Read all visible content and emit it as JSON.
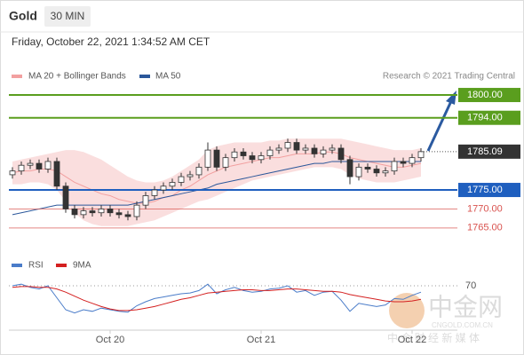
{
  "header": {
    "title": "Gold",
    "timeframe": "30 MIN",
    "timestamp": "Friday, October 22, 2021 1:34:52 AM CET",
    "source": "Research © 2021 Trading Central"
  },
  "watermark": {
    "brand": "中金网",
    "site": "CNGOLD.COM.CN",
    "tagline": "中 金 财 经 新 媒 体"
  },
  "chart_data": [
    {
      "type": "candlestick",
      "categories": [
        null,
        null,
        null,
        null,
        null,
        null,
        null,
        null,
        null,
        null,
        null,
        "Oct 20",
        null,
        null,
        null,
        null,
        null,
        null,
        null,
        null,
        null,
        null,
        null,
        null,
        null,
        null,
        null,
        null,
        "Oct 21",
        null,
        null,
        null,
        null,
        null,
        null,
        null,
        null,
        null,
        null,
        null,
        null,
        null,
        null,
        null,
        null,
        "Oct 22",
        null
      ],
      "open": [
        1779.0,
        1780.0,
        1781.5,
        1782.0,
        1780.5,
        1782.5,
        1776.0,
        1770.0,
        1768.5,
        1769.5,
        1769.0,
        1770.0,
        1769.0,
        1768.5,
        1768.0,
        1771.0,
        1773.5,
        1775.0,
        1776.0,
        1777.0,
        1778.5,
        1779.0,
        1781.0,
        1785.5,
        1781.0,
        1783.5,
        1785.0,
        1784.0,
        1783.0,
        1784.0,
        1785.5,
        1786.0,
        1787.5,
        1785.5,
        1786.0,
        1784.5,
        1785.5,
        1786.0,
        1783.0,
        1778.5,
        1781.0,
        1780.5,
        1779.5,
        1780.0,
        1782.5,
        1782.0,
        1783.5
      ],
      "high": [
        1781,
        1782.5,
        1783,
        1783,
        1783.5,
        1783.5,
        1777,
        1771,
        1770.5,
        1770.5,
        1771,
        1771,
        1770,
        1769.5,
        1772,
        1774.5,
        1776,
        1777,
        1778,
        1779.5,
        1780,
        1782,
        1787.5,
        1786.5,
        1784.5,
        1786,
        1786,
        1785,
        1785,
        1786.5,
        1787,
        1788.5,
        1788.5,
        1787,
        1787,
        1786.5,
        1787,
        1787,
        1784,
        1782,
        1782,
        1781.5,
        1781,
        1783.5,
        1783.5,
        1784.5,
        1786
      ],
      "low": [
        1778,
        1779,
        1780.5,
        1779.5,
        1779.5,
        1775,
        1769,
        1767.5,
        1767.5,
        1768,
        1768,
        1768,
        1767.5,
        1767,
        1767,
        1770,
        1772.5,
        1774,
        1775,
        1776,
        1777.5,
        1778,
        1780,
        1780,
        1780,
        1782.5,
        1783,
        1782,
        1782,
        1783,
        1784.5,
        1785,
        1784.5,
        1784.5,
        1783.5,
        1783.5,
        1784.5,
        1782,
        1776.5,
        1777.5,
        1779.5,
        1778.5,
        1778.5,
        1779,
        1781,
        1781,
        1782.5
      ],
      "close": [
        1780.0,
        1781.5,
        1782.0,
        1780.5,
        1782.5,
        1776.0,
        1770.0,
        1768.5,
        1769.5,
        1769.0,
        1770.0,
        1769.0,
        1768.5,
        1768.0,
        1771.0,
        1773.5,
        1775.0,
        1776.0,
        1777.0,
        1778.5,
        1779.0,
        1781.0,
        1785.5,
        1781.0,
        1783.5,
        1785.0,
        1784.0,
        1783.0,
        1784.0,
        1785.5,
        1786.0,
        1787.5,
        1785.5,
        1786.0,
        1784.5,
        1785.5,
        1786.0,
        1783.0,
        1778.5,
        1781.0,
        1780.5,
        1779.5,
        1780.0,
        1782.5,
        1782.0,
        1783.5,
        1785.09
      ],
      "candle_colors": {
        "up": "#ffffff",
        "down": "#333333"
      },
      "bands": {
        "name": "MA 20 + Bollinger Bands",
        "color": "#f2a0a0",
        "upper": [
          1782.5,
          1783,
          1783.5,
          1784,
          1784.5,
          1785,
          1785.5,
          1785.5,
          1785,
          1784,
          1783,
          1781.5,
          1780,
          1778.5,
          1777.5,
          1777,
          1777,
          1777.5,
          1778.5,
          1780,
          1781.5,
          1783,
          1785.5,
          1786.5,
          1787,
          1787.5,
          1787.5,
          1787.5,
          1787.5,
          1788,
          1788,
          1788.5,
          1788.5,
          1788.5,
          1788.5,
          1788.5,
          1788.5,
          1788.5,
          1788,
          1787.5,
          1787,
          1786.5,
          1786,
          1785.5,
          1785.5,
          1785.5,
          1786
        ],
        "middle": [
          1779.5,
          1780,
          1780,
          1780.5,
          1780.5,
          1780,
          1778.5,
          1777,
          1776,
          1775,
          1774,
          1773.5,
          1772.5,
          1772,
          1771.5,
          1771.5,
          1772,
          1773,
          1773.5,
          1775,
          1776,
          1777.5,
          1779,
          1780,
          1781,
          1781.5,
          1782,
          1782.5,
          1783,
          1783.5,
          1783.5,
          1784,
          1784.5,
          1784.5,
          1784.5,
          1785,
          1785,
          1784.5,
          1783.5,
          1783,
          1782.5,
          1782,
          1781.5,
          1781,
          1781,
          1781.5,
          1782
        ],
        "lower": [
          1776.5,
          1776.5,
          1777,
          1777,
          1776.5,
          1775,
          1772,
          1769,
          1767,
          1766,
          1765.5,
          1765.5,
          1765.5,
          1765.5,
          1766,
          1766.5,
          1767,
          1768,
          1769,
          1770,
          1771,
          1772,
          1772.5,
          1773.5,
          1774.5,
          1775.5,
          1776.5,
          1777.5,
          1778,
          1778.5,
          1779,
          1779.5,
          1780,
          1780.5,
          1781,
          1781,
          1781,
          1780.5,
          1779,
          1778,
          1777.5,
          1777,
          1777,
          1777,
          1777.5,
          1778,
          1778.5
        ]
      },
      "series": [
        {
          "name": "MA 50",
          "color": "#2b579a",
          "values": [
            1768.5,
            1769,
            1769.5,
            1770,
            1770.5,
            1771,
            1771,
            1771,
            1771,
            1771,
            1771,
            1771,
            1771,
            1771,
            1771.5,
            1772,
            1772.5,
            1773,
            1773.5,
            1774,
            1774.5,
            1775,
            1775.5,
            1776.5,
            1777,
            1777.5,
            1778,
            1778.5,
            1779,
            1779.5,
            1780,
            1780.5,
            1781,
            1781.5,
            1782,
            1782,
            1782.5,
            1782.5,
            1782.5,
            1782.5,
            1782.5,
            1782.5,
            1782.5,
            1782.5,
            1782.5,
            1782.5,
            1782.5
          ]
        }
      ],
      "levels": [
        {
          "value": 1800,
          "label": "1800.00",
          "color": "#5a9e1e",
          "boxed": true
        },
        {
          "value": 1794,
          "label": "1794.00",
          "color": "#5a9e1e",
          "boxed": true
        },
        {
          "value": 1775,
          "label": "1775.00",
          "color": "#1f5fbf",
          "boxed": true
        },
        {
          "value": 1770,
          "label": "1770.00",
          "color": "#d9534f",
          "boxed": false
        },
        {
          "value": 1765,
          "label": "1765.00",
          "color": "#d9534f",
          "boxed": false
        }
      ],
      "last_price": 1785.09,
      "last_price_color": "#333333",
      "ylim": [
        1763,
        1803
      ]
    },
    {
      "type": "line",
      "series": [
        {
          "name": "RSI",
          "color": "#4a7cc9",
          "values": [
            70,
            72,
            68,
            66,
            70,
            55,
            40,
            36,
            40,
            38,
            42,
            40,
            38,
            37,
            45,
            50,
            54,
            56,
            58,
            60,
            61,
            64,
            72,
            60,
            65,
            68,
            64,
            62,
            63,
            66,
            67,
            70,
            62,
            64,
            58,
            62,
            63,
            52,
            38,
            48,
            46,
            44,
            46,
            54,
            53,
            58,
            62
          ]
        },
        {
          "name": "9MA",
          "color": "#d42020",
          "values": [
            68,
            69,
            69,
            68,
            68,
            66,
            62,
            57,
            52,
            48,
            44,
            41,
            39,
            39,
            40,
            42,
            44,
            47,
            50,
            53,
            55,
            58,
            61,
            62,
            63,
            64,
            65,
            65,
            64,
            64,
            65,
            66,
            66,
            65,
            64,
            63,
            63,
            62,
            59,
            57,
            55,
            53,
            51,
            50,
            50,
            51,
            53
          ]
        }
      ],
      "ylim": [
        15,
        90
      ],
      "yticks": [
        70
      ]
    }
  ]
}
